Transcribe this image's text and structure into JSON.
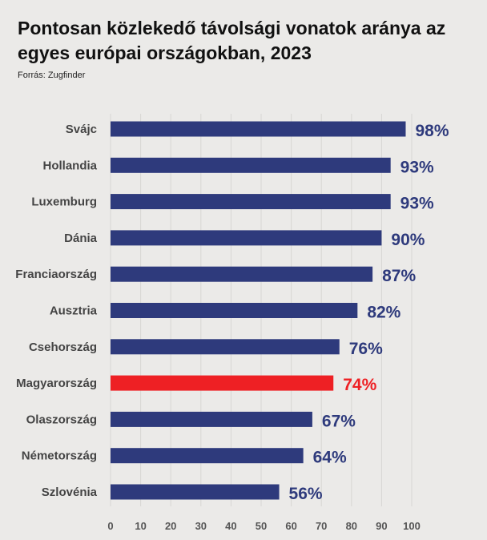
{
  "header": {
    "title": "Pontosan közlekedő távolsági vonatok aránya az egyes európai országokban, 2023",
    "source": "Forrás: Zugfinder"
  },
  "colors": {
    "default_bar": "#2e3a7c",
    "highlight_bar": "#ee2024",
    "grid": "#d7d6d3",
    "background": "#ebeae8"
  },
  "chart_data": {
    "type": "bar",
    "orientation": "horizontal",
    "title": "Pontosan közlekedő távolsági vonatok aránya az egyes európai országokban, 2023",
    "categories": [
      "Svájc",
      "Hollandia",
      "Luxemburg",
      "Dánia",
      "Franciaország",
      "Ausztria",
      "Csehország",
      "Magyarország",
      "Olaszország",
      "Németország",
      "Szlovénia"
    ],
    "values": [
      98,
      93,
      93,
      90,
      87,
      82,
      76,
      74,
      67,
      64,
      56
    ],
    "value_labels": [
      "98%",
      "93%",
      "93%",
      "90%",
      "87%",
      "82%",
      "76%",
      "74%",
      "67%",
      "64%",
      "56%"
    ],
    "highlight": "Magyarország",
    "xlim": [
      0,
      100
    ],
    "xticks": [
      0,
      10,
      20,
      30,
      40,
      50,
      60,
      70,
      80,
      90,
      100
    ],
    "grid": true
  }
}
